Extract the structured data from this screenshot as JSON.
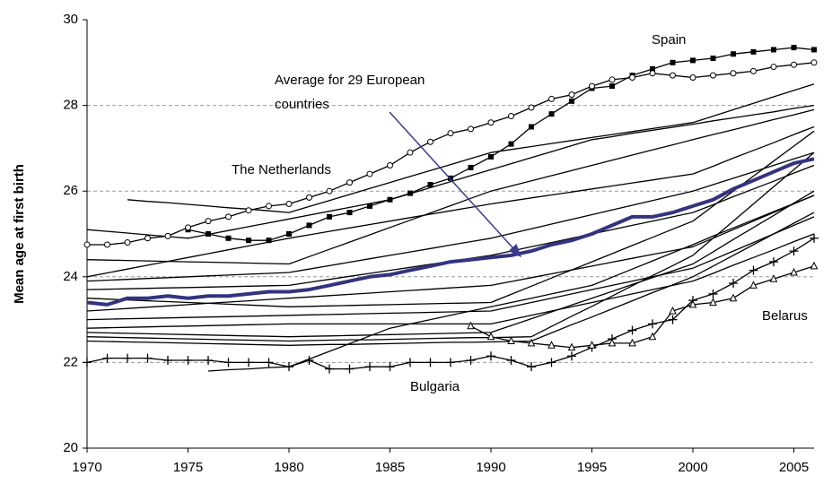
{
  "chart_data": {
    "type": "line",
    "ylabel": "Mean age at first birth",
    "annotations": [
      "Spain",
      "Average for 29 European",
      "countries",
      "The Netherlands",
      "Bulgaria",
      "Belarus"
    ],
    "x": [
      1970,
      1971,
      1972,
      1973,
      1974,
      1975,
      1976,
      1977,
      1978,
      1979,
      1980,
      1981,
      1982,
      1983,
      1984,
      1985,
      1986,
      1987,
      1988,
      1989,
      1990,
      1991,
      1992,
      1993,
      1994,
      1995,
      1996,
      1997,
      1998,
      1999,
      2000,
      2001,
      2002,
      2003,
      2004,
      2005,
      2006
    ],
    "xlim": [
      1970,
      2006
    ],
    "xticks": [
      1970,
      1975,
      1980,
      1985,
      1990,
      1995,
      2000,
      2005
    ],
    "ylim": [
      20,
      30
    ],
    "yticks": [
      20,
      22,
      24,
      26,
      28,
      30
    ],
    "grid": true,
    "series": [
      {
        "color": "#000000",
        "values": [
          null,
          null,
          25.8,
          25.76,
          25.73,
          25.69,
          25.65,
          25.61,
          25.58,
          25.54,
          25.5,
          25.64,
          25.78,
          25.92,
          26.06,
          26.2,
          26.34,
          26.48,
          26.62,
          26.76,
          26.9,
          26.97,
          27.04,
          27.11,
          27.18,
          27.25,
          27.32,
          27.39,
          27.46,
          27.53,
          27.6,
          27.75,
          27.9,
          28.05,
          28.2,
          28.35,
          28.5
        ]
      },
      {
        "color": "#000000",
        "values": [
          25.1,
          25.06,
          25.02,
          24.98,
          24.94,
          24.9,
          24.99,
          25.08,
          25.17,
          25.26,
          25.35,
          25.44,
          25.53,
          25.62,
          25.71,
          25.8,
          25.94,
          26.08,
          26.22,
          26.36,
          26.5,
          26.64,
          26.78,
          26.92,
          27.06,
          27.2,
          27.27,
          27.35,
          27.42,
          27.49,
          27.56,
          27.64,
          27.71,
          27.78,
          27.85,
          27.93,
          28.0
        ]
      },
      {
        "color": "#000000",
        "values": [
          24.4,
          24.39,
          24.38,
          24.37,
          24.36,
          24.35,
          24.34,
          24.33,
          24.32,
          24.31,
          24.3,
          24.47,
          24.64,
          24.81,
          24.98,
          25.15,
          25.32,
          25.49,
          25.66,
          25.83,
          26.0,
          26.12,
          26.24,
          26.36,
          26.48,
          26.6,
          26.72,
          26.84,
          26.96,
          27.08,
          27.2,
          27.32,
          27.43,
          27.55,
          27.67,
          27.78,
          27.9
        ]
      },
      {
        "color": "#000000",
        "values": [
          24.0,
          24.09,
          24.18,
          24.27,
          24.36,
          24.45,
          24.54,
          24.63,
          24.72,
          24.81,
          24.9,
          24.98,
          25.06,
          25.14,
          25.22,
          25.3,
          25.38,
          25.46,
          25.54,
          25.62,
          25.7,
          25.77,
          25.84,
          25.91,
          25.98,
          26.05,
          26.12,
          26.19,
          26.26,
          26.33,
          26.4,
          26.58,
          26.77,
          26.95,
          27.13,
          27.32,
          27.5
        ]
      },
      {
        "color": "#000000",
        "values": [
          23.9,
          23.92,
          23.94,
          23.96,
          23.98,
          24.0,
          24.02,
          24.04,
          24.06,
          24.08,
          24.1,
          24.18,
          24.26,
          24.34,
          24.42,
          24.5,
          24.58,
          24.66,
          24.74,
          24.82,
          24.9,
          25.01,
          25.12,
          25.23,
          25.34,
          25.45,
          25.56,
          25.67,
          25.78,
          25.89,
          26.0,
          26.15,
          26.3,
          26.45,
          26.6,
          26.75,
          26.9
        ]
      },
      {
        "color": "#000000",
        "values": [
          23.7,
          23.71,
          23.72,
          23.73,
          23.74,
          23.75,
          23.76,
          23.77,
          23.78,
          23.79,
          23.8,
          23.87,
          23.94,
          24.01,
          24.08,
          24.15,
          24.22,
          24.29,
          24.36,
          24.43,
          24.5,
          24.6,
          24.7,
          24.8,
          24.9,
          25.0,
          25.1,
          25.2,
          25.3,
          25.4,
          25.5,
          25.68,
          25.87,
          26.05,
          26.23,
          26.42,
          26.6
        ]
      },
      {
        "color": "#000000",
        "values": [
          23.2,
          23.23,
          23.26,
          23.29,
          23.32,
          23.35,
          23.38,
          23.41,
          23.44,
          23.47,
          23.5,
          23.53,
          23.56,
          23.59,
          23.62,
          23.65,
          23.68,
          23.71,
          23.74,
          23.77,
          23.8,
          23.89,
          23.98,
          24.07,
          24.16,
          24.25,
          24.34,
          24.43,
          24.52,
          24.61,
          24.7,
          24.9,
          25.1,
          25.3,
          25.5,
          25.7,
          25.9
        ]
      },
      {
        "color": "#000000",
        "values": [
          23.0,
          23.01,
          23.02,
          23.03,
          23.04,
          23.05,
          23.06,
          23.07,
          23.08,
          23.09,
          23.1,
          23.11,
          23.12,
          23.13,
          23.14,
          23.15,
          23.16,
          23.17,
          23.18,
          23.19,
          23.2,
          23.3,
          23.4,
          23.5,
          23.6,
          23.7,
          23.8,
          23.9,
          24.0,
          24.1,
          24.2,
          24.4,
          24.6,
          24.8,
          25.0,
          25.2,
          25.4
        ]
      },
      {
        "color": "#000000",
        "values": [
          22.8,
          22.81,
          22.82,
          22.83,
          22.84,
          22.85,
          22.86,
          22.87,
          22.88,
          22.89,
          22.9,
          22.9,
          22.9,
          22.9,
          22.9,
          22.9,
          22.9,
          22.9,
          22.9,
          22.9,
          22.9,
          23.0,
          23.1,
          23.2,
          23.3,
          23.4,
          23.5,
          23.6,
          23.7,
          23.8,
          23.9,
          24.08,
          24.27,
          24.45,
          24.63,
          24.82,
          25.0
        ]
      },
      {
        "color": "#000000",
        "values": [
          22.7,
          22.69,
          22.68,
          22.67,
          22.66,
          22.65,
          22.64,
          22.63,
          22.62,
          22.61,
          22.6,
          22.61,
          22.62,
          22.63,
          22.64,
          22.65,
          22.66,
          22.67,
          22.68,
          22.69,
          22.7,
          22.86,
          23.02,
          23.18,
          23.34,
          23.5,
          23.66,
          23.82,
          23.98,
          24.14,
          24.3,
          24.58,
          24.87,
          25.15,
          25.43,
          25.72,
          26.0
        ]
      },
      {
        "color": "#000000",
        "values": [
          22.5,
          22.49,
          22.48,
          22.47,
          22.46,
          22.45,
          22.44,
          22.43,
          22.42,
          22.41,
          22.4,
          22.41,
          22.42,
          22.42,
          22.43,
          22.44,
          22.45,
          22.46,
          22.47,
          22.47,
          22.48,
          22.49,
          22.5,
          22.69,
          22.88,
          23.06,
          23.25,
          23.44,
          23.63,
          23.81,
          24.0,
          24.25,
          24.5,
          24.75,
          25.0,
          25.25,
          25.5
        ]
      },
      {
        "color": "#000000",
        "values": [
          null,
          null,
          null,
          null,
          null,
          null,
          21.8,
          21.83,
          21.85,
          21.88,
          21.9,
          22.08,
          22.26,
          22.44,
          22.62,
          22.8,
          22.9,
          23.0,
          23.1,
          23.2,
          23.3,
          23.4,
          23.5,
          23.6,
          23.7,
          23.8,
          23.99,
          24.18,
          24.37,
          24.56,
          24.75,
          24.95,
          25.14,
          25.33,
          25.52,
          25.71,
          25.9
        ]
      },
      {
        "color": "#000000",
        "values": [
          22.6,
          22.59,
          22.58,
          22.57,
          22.56,
          22.55,
          22.54,
          22.53,
          22.52,
          22.51,
          22.5,
          22.51,
          22.52,
          22.53,
          22.53,
          22.54,
          22.55,
          22.56,
          22.57,
          22.58,
          22.58,
          22.59,
          22.6,
          22.84,
          23.08,
          23.31,
          23.55,
          23.79,
          24.03,
          24.26,
          24.5,
          24.9,
          25.3,
          25.7,
          26.1,
          26.5,
          26.9
        ]
      },
      {
        "color": "#000000",
        "values": [
          23.5,
          23.48,
          23.46,
          23.44,
          23.42,
          23.4,
          23.38,
          23.36,
          23.34,
          23.32,
          23.3,
          23.31,
          23.32,
          23.33,
          23.34,
          23.35,
          23.36,
          23.37,
          23.38,
          23.39,
          23.4,
          23.59,
          23.78,
          23.97,
          24.16,
          24.35,
          24.54,
          24.73,
          24.92,
          25.11,
          25.3,
          25.65,
          26.0,
          26.35,
          26.7,
          27.05,
          27.4
        ]
      },
      {
        "color": "#000000",
        "marker": "square",
        "values": [
          null,
          null,
          null,
          null,
          null,
          25.1,
          25.0,
          24.9,
          24.85,
          24.85,
          25.0,
          25.2,
          25.4,
          25.5,
          25.65,
          25.8,
          25.95,
          26.15,
          26.3,
          26.55,
          26.8,
          27.1,
          27.5,
          27.8,
          28.1,
          28.4,
          28.45,
          28.7,
          28.85,
          29.0,
          29.05,
          29.1,
          29.2,
          29.25,
          29.3,
          29.35,
          29.3
        ]
      },
      {
        "color": "#000000",
        "marker": "circle",
        "values": [
          24.75,
          24.75,
          24.8,
          24.9,
          24.95,
          25.15,
          25.3,
          25.4,
          25.55,
          25.65,
          25.7,
          25.85,
          26.0,
          26.2,
          26.4,
          26.6,
          26.9,
          27.15,
          27.35,
          27.45,
          27.6,
          27.75,
          27.95,
          28.15,
          28.25,
          28.45,
          28.6,
          28.65,
          28.75,
          28.7,
          28.65,
          28.7,
          28.75,
          28.8,
          28.9,
          28.95,
          29.0
        ]
      },
      {
        "color": "#000000",
        "marker": "plus",
        "values": [
          22.0,
          22.1,
          22.1,
          22.1,
          22.05,
          22.05,
          22.05,
          22.0,
          22.0,
          22.0,
          21.9,
          22.05,
          21.85,
          21.85,
          21.9,
          21.9,
          22.0,
          22.0,
          22.0,
          22.05,
          22.15,
          22.05,
          21.9,
          22.0,
          22.15,
          22.35,
          22.55,
          22.75,
          22.9,
          23.0,
          23.45,
          23.6,
          23.85,
          24.15,
          24.35,
          24.6,
          24.9
        ]
      },
      {
        "color": "#000000",
        "marker": "triangle",
        "values": [
          null,
          null,
          null,
          null,
          null,
          null,
          null,
          null,
          null,
          null,
          null,
          null,
          null,
          null,
          null,
          null,
          null,
          null,
          null,
          22.85,
          22.6,
          22.5,
          22.45,
          22.4,
          22.35,
          22.4,
          22.45,
          22.45,
          22.6,
          23.2,
          23.35,
          23.4,
          23.5,
          23.8,
          23.95,
          24.1,
          24.25
        ]
      },
      {
        "color": "#333380",
        "line_width": 4,
        "values": [
          23.4,
          23.35,
          23.5,
          23.5,
          23.55,
          23.5,
          23.55,
          23.55,
          23.6,
          23.65,
          23.65,
          23.7,
          23.8,
          23.9,
          24.0,
          24.05,
          24.15,
          24.25,
          24.35,
          24.4,
          24.45,
          24.5,
          24.6,
          24.75,
          24.85,
          25.0,
          25.2,
          25.4,
          25.4,
          25.5,
          25.65,
          25.8,
          26.05,
          26.25,
          26.45,
          26.65,
          26.75
        ]
      }
    ]
  }
}
